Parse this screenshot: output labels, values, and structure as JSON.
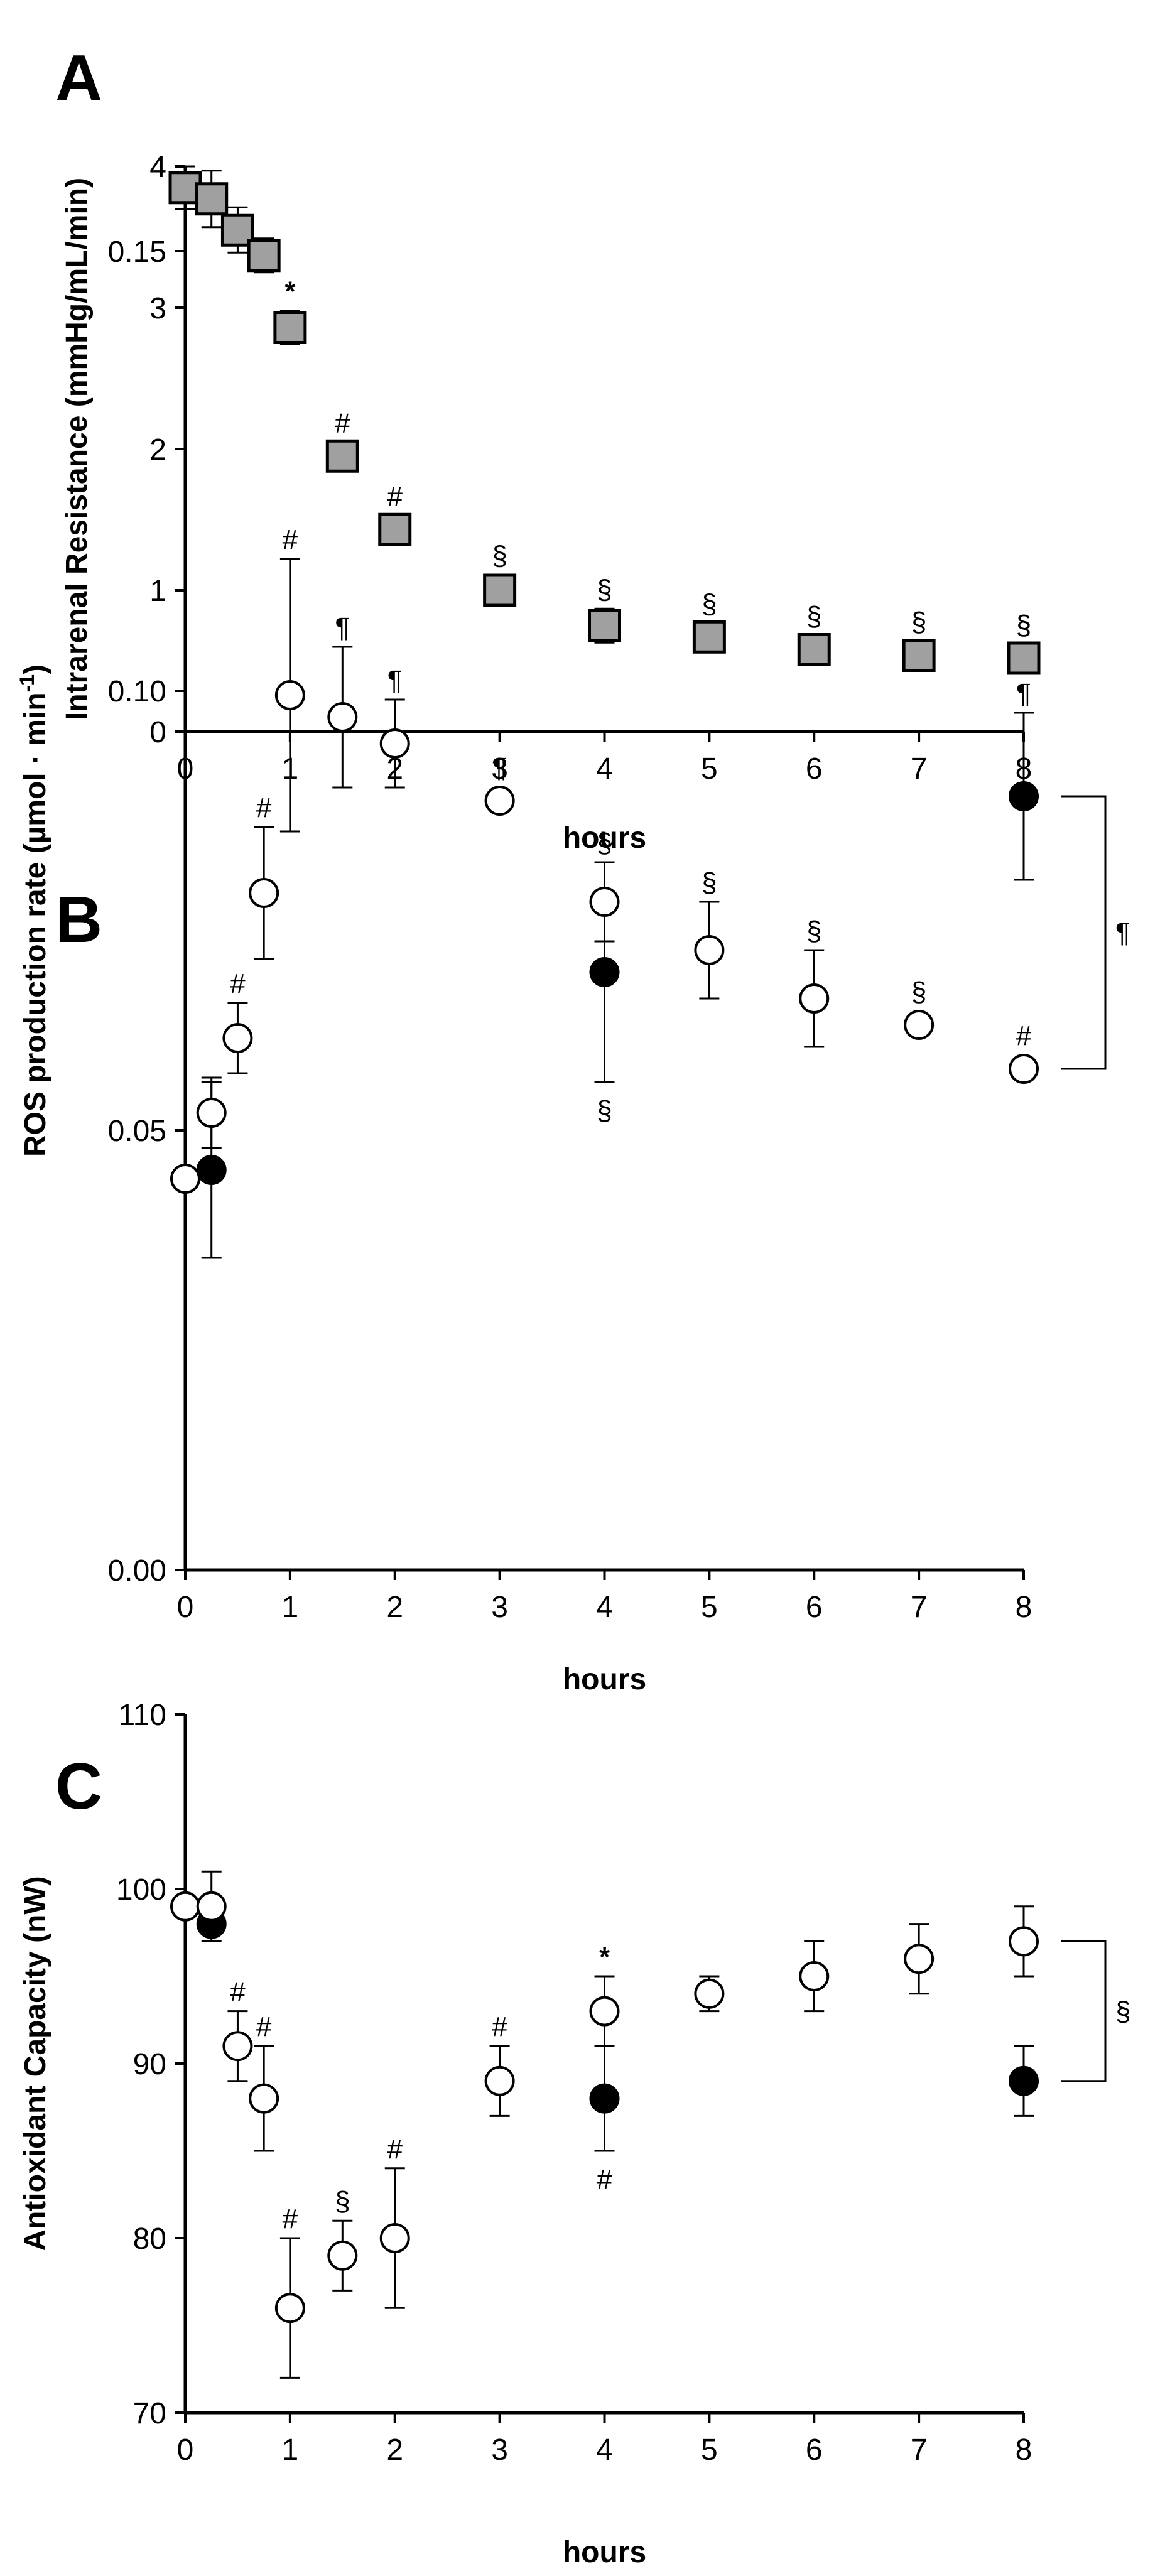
{
  "chart_data": [
    {
      "panel": "A",
      "type": "scatter",
      "xlabel": "hours",
      "ylabel": "Intrarenal Resistance (mmHg/mL/min)",
      "xlim": [
        0,
        8
      ],
      "ylim": [
        0,
        4
      ],
      "xticks": [
        "0",
        "1",
        "2",
        "3",
        "4",
        "5",
        "6",
        "7",
        "8"
      ],
      "yticks": [
        "0",
        "1",
        "2",
        "3",
        "4"
      ],
      "grid": false,
      "series": [
        {
          "name": "resistance",
          "marker": "square",
          "color": "#a0a0a0",
          "points": [
            {
              "x": 0,
              "y": 3.85,
              "err": 0.15,
              "sig": ""
            },
            {
              "x": 0.25,
              "y": 3.77,
              "err": 0.2,
              "sig": ""
            },
            {
              "x": 0.5,
              "y": 3.55,
              "err": 0.16,
              "sig": ""
            },
            {
              "x": 0.75,
              "y": 3.37,
              "err": 0.12,
              "sig": ""
            },
            {
              "x": 1,
              "y": 2.86,
              "err": 0.12,
              "sig": "*"
            },
            {
              "x": 1.5,
              "y": 1.95,
              "err": 0.08,
              "sig": "#"
            },
            {
              "x": 2,
              "y": 1.43,
              "err": 0.05,
              "sig": "#"
            },
            {
              "x": 3,
              "y": 1.0,
              "err": 0.11,
              "sig": "§"
            },
            {
              "x": 4,
              "y": 0.75,
              "err": 0.12,
              "sig": "§"
            },
            {
              "x": 5,
              "y": 0.67,
              "err": 0.08,
              "sig": "§"
            },
            {
              "x": 6,
              "y": 0.58,
              "err": 0.1,
              "sig": "§"
            },
            {
              "x": 7,
              "y": 0.54,
              "err": 0.1,
              "sig": "§"
            },
            {
              "x": 8,
              "y": 0.52,
              "err": 0.08,
              "sig": "§"
            }
          ]
        }
      ]
    },
    {
      "panel": "B",
      "type": "scatter",
      "xlabel": "hours",
      "ylabel": "ROS production rate (µmol · min",
      "ylabel_sup": "-1",
      "ylabel_end": ")",
      "xlim": [
        0,
        8
      ],
      "ylim": [
        0,
        0.15
      ],
      "xticks": [
        "0",
        "1",
        "2",
        "3",
        "4",
        "5",
        "6",
        "7",
        "8"
      ],
      "yticks": [
        "0.00",
        "0.05",
        "0.10",
        "0.15"
      ],
      "grid": false,
      "series": [
        {
          "name": "filled",
          "marker": "filled-circle",
          "color": "#000000",
          "points": [
            {
              "x": 0.25,
              "y": 0.0455,
              "err": 0.01,
              "sig": "",
              "sig_pos": "above"
            },
            {
              "x": 4,
              "y": 0.068,
              "err": 0.0125,
              "sig": "§",
              "sig_pos": "below"
            },
            {
              "x": 8,
              "y": 0.088,
              "err": 0.0095,
              "sig": "¶",
              "sig_pos": "above"
            }
          ]
        },
        {
          "name": "open",
          "marker": "open-circle",
          "color": "#ffffff",
          "points": [
            {
              "x": 0,
              "y": 0.0445,
              "err": 0,
              "sig": "",
              "sig_pos": "above"
            },
            {
              "x": 0.25,
              "y": 0.052,
              "err": 0.004,
              "sig": "",
              "sig_pos": "above"
            },
            {
              "x": 0.5,
              "y": 0.0605,
              "err": 0.004,
              "sig": "#",
              "sig_pos": "above"
            },
            {
              "x": 0.75,
              "y": 0.077,
              "err": 0.0075,
              "sig": "#",
              "sig_pos": "above"
            },
            {
              "x": 1,
              "y": 0.0995,
              "err": 0.0155,
              "sig": "#",
              "sig_pos": "above"
            },
            {
              "x": 1.5,
              "y": 0.097,
              "err": 0.008,
              "sig": "¶",
              "sig_pos": "above"
            },
            {
              "x": 2,
              "y": 0.094,
              "err": 0.005,
              "sig": "¶",
              "sig_pos": "above"
            },
            {
              "x": 3,
              "y": 0.0875,
              "err": 0,
              "sig": "¶",
              "sig_pos": "above"
            },
            {
              "x": 4,
              "y": 0.076,
              "err": 0.0045,
              "sig": "§",
              "sig_pos": "above"
            },
            {
              "x": 5,
              "y": 0.0705,
              "err": 0.0055,
              "sig": "§",
              "sig_pos": "above"
            },
            {
              "x": 6,
              "y": 0.065,
              "err": 0.0055,
              "sig": "§",
              "sig_pos": "above"
            },
            {
              "x": 7,
              "y": 0.062,
              "err": 0,
              "sig": "§",
              "sig_pos": "above"
            },
            {
              "x": 8,
              "y": 0.057,
              "err": 0,
              "sig": "#",
              "sig_pos": "above"
            }
          ]
        }
      ],
      "bracket": {
        "x": 8,
        "y_top": 0.088,
        "y_bottom": 0.057,
        "label": "¶"
      }
    },
    {
      "panel": "C",
      "type": "scatter",
      "xlabel": "hours",
      "ylabel": "Antioxidant Capacity (nW)",
      "xlim": [
        0,
        8
      ],
      "ylim": [
        70,
        110
      ],
      "xticks": [
        "0",
        "1",
        "2",
        "3",
        "4",
        "5",
        "6",
        "7",
        "8"
      ],
      "yticks": [
        "70",
        "80",
        "90",
        "100",
        "110"
      ],
      "grid": false,
      "series": [
        {
          "name": "filled",
          "marker": "filled-circle",
          "color": "#000000",
          "points": [
            {
              "x": 0.25,
              "y": 98,
              "err": 0,
              "sig": "",
              "sig_pos": "above"
            },
            {
              "x": 4,
              "y": 88,
              "err": 3,
              "sig": "#",
              "sig_pos": "below"
            },
            {
              "x": 8,
              "y": 89,
              "err": 2,
              "sig": "",
              "sig_pos": "above"
            }
          ]
        },
        {
          "name": "open",
          "marker": "open-circle",
          "color": "#ffffff",
          "points": [
            {
              "x": 0,
              "y": 99,
              "err": 0,
              "sig": "",
              "sig_pos": "above"
            },
            {
              "x": 0.25,
              "y": 99,
              "err": 2,
              "sig": "",
              "sig_pos": "above"
            },
            {
              "x": 0.5,
              "y": 91,
              "err": 2,
              "sig": "#",
              "sig_pos": "above"
            },
            {
              "x": 0.75,
              "y": 88,
              "err": 3,
              "sig": "#",
              "sig_pos": "above"
            },
            {
              "x": 1,
              "y": 76,
              "err": 4,
              "sig": "#",
              "sig_pos": "above"
            },
            {
              "x": 1.5,
              "y": 79,
              "err": 2,
              "sig": "§",
              "sig_pos": "above"
            },
            {
              "x": 2,
              "y": 80,
              "err": 4,
              "sig": "#",
              "sig_pos": "above"
            },
            {
              "x": 3,
              "y": 89,
              "err": 2,
              "sig": "#",
              "sig_pos": "above"
            },
            {
              "x": 4,
              "y": 93,
              "err": 2,
              "sig": "*",
              "sig_pos": "above"
            },
            {
              "x": 5,
              "y": 94,
              "err": 1,
              "sig": "",
              "sig_pos": "above"
            },
            {
              "x": 6,
              "y": 95,
              "err": 2,
              "sig": "",
              "sig_pos": "above"
            },
            {
              "x": 7,
              "y": 96,
              "err": 2,
              "sig": "",
              "sig_pos": "above"
            },
            {
              "x": 8,
              "y": 97,
              "err": 2,
              "sig": "",
              "sig_pos": "above"
            }
          ]
        }
      ],
      "bracket": {
        "x": 8,
        "y_top": 97,
        "y_bottom": 89,
        "label": "§"
      }
    }
  ]
}
